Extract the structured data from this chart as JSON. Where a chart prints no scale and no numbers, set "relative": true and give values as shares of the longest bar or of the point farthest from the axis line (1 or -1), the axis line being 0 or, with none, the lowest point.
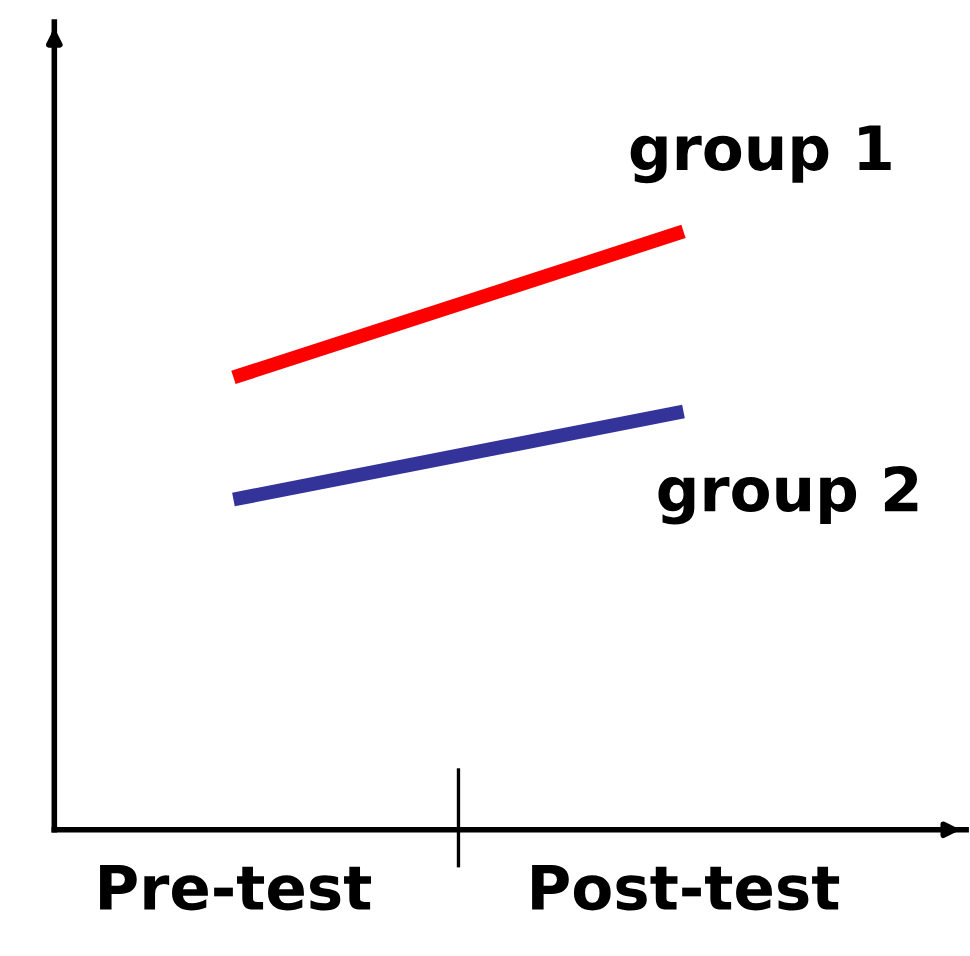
{
  "chart_data": {
    "type": "line",
    "relative": true,
    "categories": [
      "Pre-test",
      "Post-test"
    ],
    "legend": false,
    "grid": false,
    "marker": "none",
    "line_style": "solid",
    "series": [
      {
        "name": "group 1",
        "color": "#ff0000",
        "values": [
          0.756,
          1.0
        ]
      },
      {
        "name": "group 2",
        "color": "#333399",
        "values": [
          0.552,
          0.699
        ]
      }
    ]
  }
}
